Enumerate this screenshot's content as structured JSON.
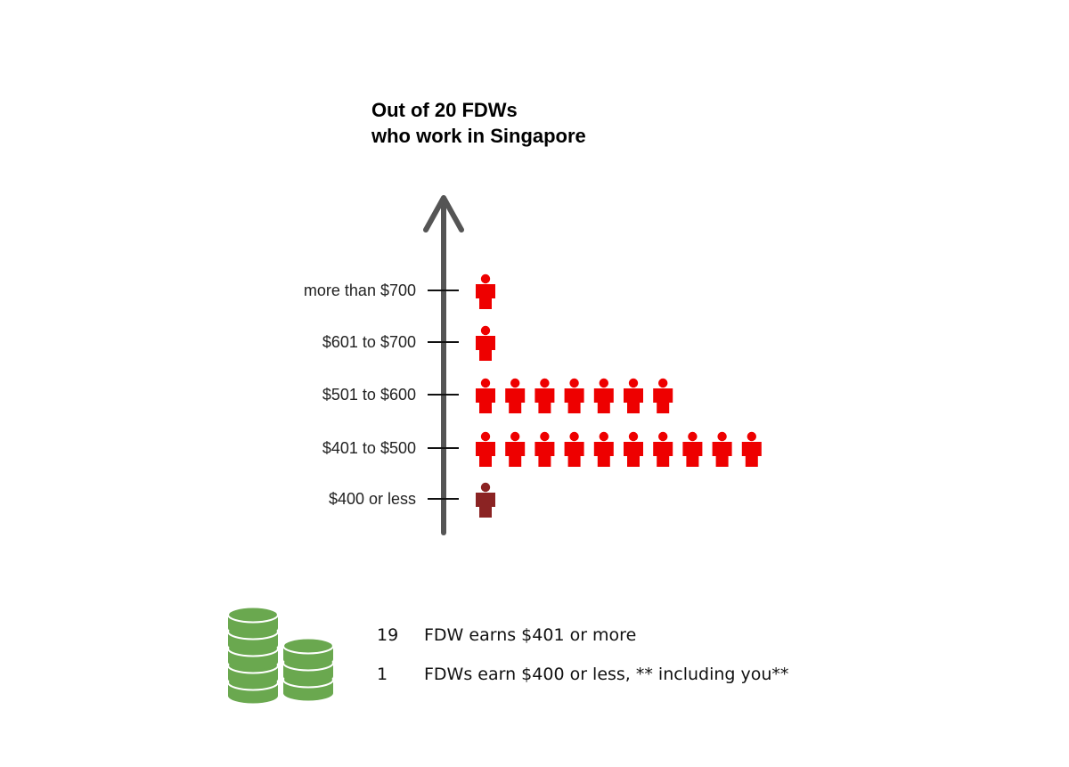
{
  "chart_data": {
    "type": "pictograph",
    "title_lines": [
      "Out of 20 FDWs",
      "who work in Singapore"
    ],
    "categories": [
      "$400 or less",
      "$401 to $500",
      "$501 to $600",
      "$601 to $700",
      "more than $700"
    ],
    "values": [
      1,
      10,
      7,
      1,
      1
    ],
    "highlight_category": "$400 or less",
    "colors": {
      "icon": "#ee0000",
      "highlight_icon": "#8b2323",
      "axis": "#555555",
      "coins": "#6aa84f",
      "coins_dark": "#4e8a3a"
    }
  },
  "summary": [
    {
      "count": "19",
      "text": "FDW earns $401 or more"
    },
    {
      "count": "1",
      "text": "FDWs earn $400 or less, ** including you**"
    }
  ],
  "icons": {
    "person": "person-icon",
    "coins": "coin-stack-icon"
  }
}
